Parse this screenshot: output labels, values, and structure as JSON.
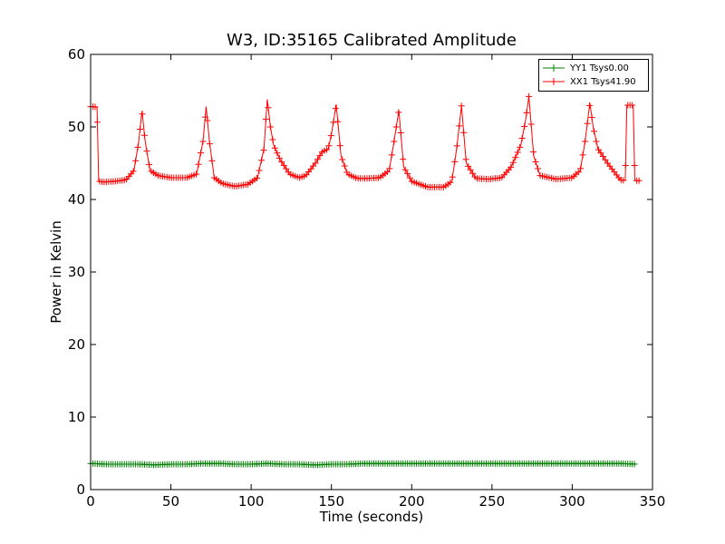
{
  "chart_data": {
    "type": "line",
    "title": "W3, ID:35165 Calibrated Amplitude",
    "xlabel": "Time (seconds)",
    "ylabel": "Power in Kelvin",
    "xlim": [
      0,
      350
    ],
    "ylim": [
      0,
      60
    ],
    "xticks": [
      0,
      50,
      100,
      150,
      200,
      250,
      300,
      350
    ],
    "yticks": [
      0,
      10,
      20,
      30,
      40,
      50,
      60
    ],
    "grid": false,
    "legend_position": "top-right",
    "series": [
      {
        "name": "YY1 Tsys0.00",
        "color": "#008000",
        "marker": "+",
        "x": [
          0,
          10,
          20,
          30,
          40,
          50,
          60,
          70,
          80,
          90,
          100,
          110,
          120,
          130,
          140,
          150,
          160,
          170,
          180,
          190,
          200,
          210,
          220,
          230,
          240,
          250,
          260,
          270,
          280,
          290,
          300,
          310,
          320,
          330,
          340
        ],
        "y": [
          3.6,
          3.5,
          3.5,
          3.5,
          3.4,
          3.5,
          3.5,
          3.6,
          3.6,
          3.5,
          3.5,
          3.6,
          3.5,
          3.5,
          3.4,
          3.5,
          3.5,
          3.6,
          3.6,
          3.6,
          3.6,
          3.6,
          3.6,
          3.6,
          3.6,
          3.6,
          3.6,
          3.6,
          3.6,
          3.6,
          3.6,
          3.6,
          3.6,
          3.6,
          3.5
        ]
      },
      {
        "name": "XX1 Tsys41.90",
        "color": "#ff0000",
        "marker": "+",
        "x": [
          0,
          2,
          4,
          5,
          8,
          15,
          22,
          27,
          30,
          32,
          34,
          37,
          42,
          50,
          60,
          66,
          70,
          72,
          74,
          77,
          82,
          90,
          98,
          104,
          108,
          110,
          112,
          114,
          118,
          124,
          130,
          134,
          140,
          144,
          148,
          150,
          153,
          156,
          160,
          166,
          172,
          180,
          186,
          189,
          192,
          195,
          200,
          210,
          220,
          225,
          228,
          231,
          234,
          240,
          248,
          256,
          262,
          268,
          271,
          273,
          276,
          280,
          290,
          300,
          305,
          308,
          311,
          313,
          316,
          322,
          330,
          333,
          334,
          336,
          338,
          339,
          342
        ],
        "y": [
          52.8,
          52.8,
          52.7,
          42.5,
          42.4,
          42.5,
          42.7,
          44,
          48,
          52.2,
          48,
          44,
          43.3,
          43,
          43,
          43.5,
          48,
          52.8,
          48,
          43,
          42.2,
          41.8,
          42.1,
          43,
          47,
          53.8,
          50,
          47.5,
          45.5,
          43.5,
          43,
          43.3,
          45,
          46.5,
          47,
          49,
          53.1,
          46,
          43.5,
          42.9,
          42.9,
          43,
          44,
          48,
          52.3,
          44.5,
          42.5,
          41.7,
          41.7,
          42.5,
          47,
          52.9,
          45,
          42.9,
          42.8,
          43,
          44.5,
          47.5,
          51,
          54.2,
          46,
          43.3,
          42.8,
          43,
          44,
          48,
          53.3,
          50,
          47,
          45,
          42.7,
          42.6,
          53,
          53,
          53,
          42.6,
          42.6
        ]
      }
    ]
  }
}
